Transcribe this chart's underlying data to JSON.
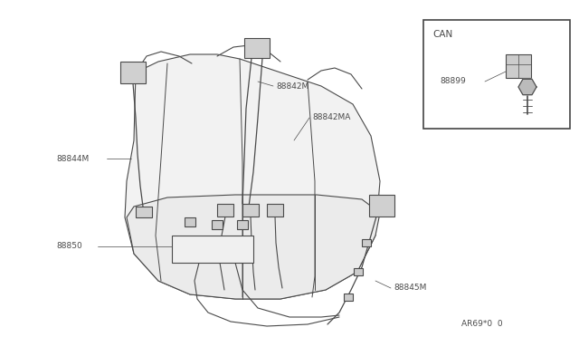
{
  "bg_color": "#ffffff",
  "line_color": "#4a4a4a",
  "text_color": "#4a4a4a",
  "part_code": "AR69*0  0",
  "inset_label": "CAN",
  "inset_part": "88899",
  "fig_width": 6.4,
  "fig_height": 3.72,
  "dpi": 100
}
